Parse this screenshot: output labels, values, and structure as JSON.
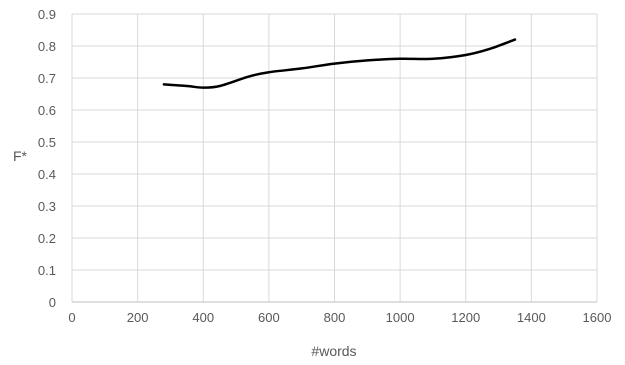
{
  "chart_data": {
    "type": "line",
    "title": "",
    "xlabel": "#words",
    "ylabel": "F*",
    "xlim": [
      0,
      1600
    ],
    "ylim": [
      0,
      0.9
    ],
    "x_ticks": [
      "0",
      "200",
      "400",
      "600",
      "800",
      "1000",
      "1200",
      "1400",
      "1600"
    ],
    "y_ticks": [
      "0",
      "0.1",
      "0.2",
      "0.3",
      "0.4",
      "0.5",
      "0.6",
      "0.7",
      "0.8",
      "0.9"
    ],
    "grid": true,
    "legend": "none",
    "series": [
      {
        "color": "#000000",
        "smooth": true,
        "x": [
          280,
          350,
          400,
          450,
          540,
          600,
          700,
          800,
          900,
          1000,
          1100,
          1200,
          1270,
          1350
        ],
        "y": [
          0.68,
          0.675,
          0.67,
          0.675,
          0.705,
          0.718,
          0.73,
          0.745,
          0.755,
          0.76,
          0.76,
          0.772,
          0.79,
          0.82
        ]
      }
    ]
  }
}
